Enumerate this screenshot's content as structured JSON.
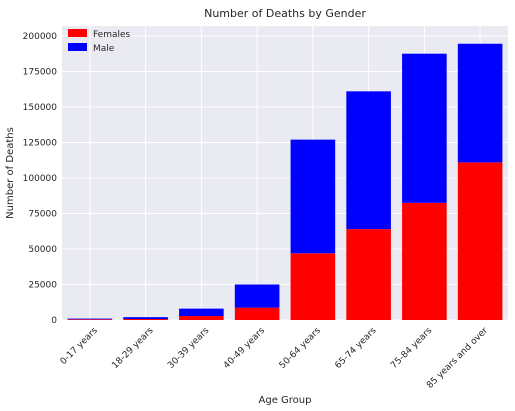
{
  "chart_data": {
    "type": "bar",
    "stacked": true,
    "title": "Number of Deaths by Gender",
    "xlabel": "Age Group",
    "ylabel": "Number of Deaths",
    "categories": [
      "0-17 years",
      "18-29 years",
      "30-39 years",
      "40-49 years",
      "50-64 years",
      "65-74 years",
      "75-84 years",
      "85 years and over"
    ],
    "series": [
      {
        "name": "Females",
        "color": "#ff0000",
        "values": [
          500,
          700,
          2800,
          8700,
          47000,
          64000,
          82500,
          111000
        ]
      },
      {
        "name": "Male",
        "color": "#0000ff",
        "values": [
          500,
          1300,
          5200,
          16300,
          80000,
          97000,
          105000,
          83500
        ]
      }
    ],
    "ylim": [
      0,
      207000
    ],
    "yticks": [
      0,
      25000,
      50000,
      75000,
      100000,
      125000,
      150000,
      175000,
      200000
    ],
    "grid": true,
    "legend_position": "top-left",
    "background_color": "#eaeaf2",
    "grid_color": "#ffffff"
  }
}
